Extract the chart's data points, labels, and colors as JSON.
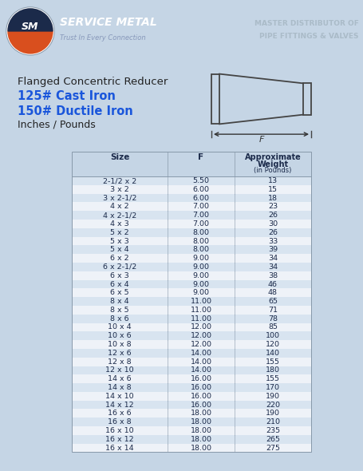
{
  "header_bg": "#1b2a4a",
  "header_text_color": "#ffffff",
  "company_name": "SERVICE METAL",
  "company_tagline": "Trust In Every Connection",
  "master_dist_line1": "MASTER DISTRIBUTOR OF",
  "master_dist_line2": "PIPE FITTINGS & VALVES",
  "title_line1": "Flanged Concentric Reducer",
  "title_line2": "125# Cast Iron",
  "title_line3": "150# Ductile Iron",
  "title_line4": "Inches / Pounds",
  "title_color1": "#222222",
  "title_color2": "#1a56db",
  "col_headers": [
    "Size",
    "F",
    "Approximate\nWeight\n(in Pounds)"
  ],
  "rows": [
    [
      "2-1/2 x 2",
      "5.50",
      "13"
    ],
    [
      "3 x 2",
      "6.00",
      "15"
    ],
    [
      "3 x 2-1/2",
      "6.00",
      "18"
    ],
    [
      "4 x 2",
      "7.00",
      "23"
    ],
    [
      "4 x 2-1/2",
      "7.00",
      "26"
    ],
    [
      "4 x 3",
      "7.00",
      "30"
    ],
    [
      "5 x 2",
      "8.00",
      "26"
    ],
    [
      "5 x 3",
      "8.00",
      "33"
    ],
    [
      "5 x 4",
      "8.00",
      "39"
    ],
    [
      "6 x 2",
      "9.00",
      "34"
    ],
    [
      "6 x 2-1/2",
      "9.00",
      "34"
    ],
    [
      "6 x 3",
      "9.00",
      "38"
    ],
    [
      "6 x 4",
      "9.00",
      "46"
    ],
    [
      "6 x 5",
      "9.00",
      "48"
    ],
    [
      "8 x 4",
      "11.00",
      "65"
    ],
    [
      "8 x 5",
      "11.00",
      "71"
    ],
    [
      "8 x 6",
      "11.00",
      "78"
    ],
    [
      "10 x 4",
      "12.00",
      "85"
    ],
    [
      "10 x 6",
      "12.00",
      "100"
    ],
    [
      "10 x 8",
      "12.00",
      "120"
    ],
    [
      "12 x 6",
      "14.00",
      "140"
    ],
    [
      "12 x 8",
      "14.00",
      "155"
    ],
    [
      "12 x 10",
      "14.00",
      "180"
    ],
    [
      "14 x 6",
      "16.00",
      "155"
    ],
    [
      "14 x 8",
      "16.00",
      "170"
    ],
    [
      "14 x 10",
      "16.00",
      "190"
    ],
    [
      "14 x 12",
      "16.00",
      "220"
    ],
    [
      "16 x 6",
      "18.00",
      "190"
    ],
    [
      "16 x 8",
      "18.00",
      "210"
    ],
    [
      "16 x 10",
      "18.00",
      "235"
    ],
    [
      "16 x 12",
      "18.00",
      "265"
    ],
    [
      "16 x 14",
      "18.00",
      "275"
    ]
  ],
  "row_even_color": "#d8e4f0",
  "row_odd_color": "#eef2f8",
  "table_text_color": "#1b2a4a",
  "page_bg": "#c5d5e5",
  "logo_orange": "#d94f1e",
  "logo_dark": "#1b2a4a"
}
